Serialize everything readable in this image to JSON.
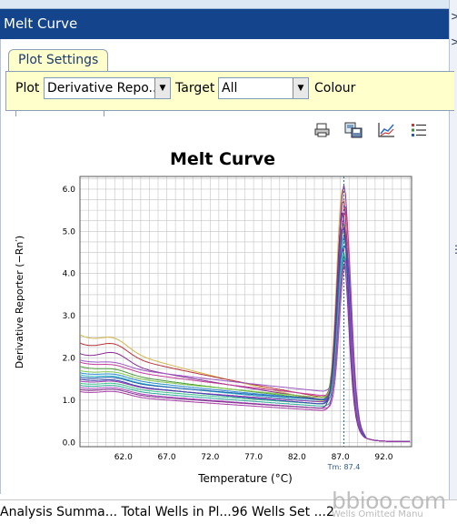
{
  "window": {
    "title": "Melt Curve"
  },
  "right_edge": {
    "glyphs": [
      ">",
      ">",
      "⋮"
    ]
  },
  "tabs": [
    {
      "label": "Plot Settings",
      "active": true
    }
  ],
  "plot_settings": {
    "plot_label": "Plot",
    "plot_value": "Derivative Repo...",
    "target_label": "Target",
    "target_value": "All",
    "colour_label": "Colour"
  },
  "toolbar": {
    "icons": [
      "print-icon",
      "save-image-icon",
      "line-chart-icon",
      "legend-list-icon"
    ]
  },
  "chart_data": {
    "type": "line",
    "title": "Melt Curve",
    "xlabel": "Temperature (°C)",
    "ylabel": "Derivative Reporter (−Rn′)",
    "xlim": [
      57.0,
      95.2
    ],
    "ylim": [
      -0.1,
      6.3
    ],
    "xticks": [
      "62.0",
      "67.0",
      "72.0",
      "77.0",
      "82.0",
      "87.0",
      "92.0"
    ],
    "yticks": [
      "0.0",
      "1.0",
      "2.0",
      "3.0",
      "4.0",
      "5.0",
      "6.0"
    ],
    "grid": true,
    "tm_label": "Tm: 87.4",
    "tm_value": 87.4,
    "series": [
      {
        "start": 2.55,
        "end": 0.95,
        "peak": 6.0,
        "color": "#d4b44a"
      },
      {
        "start": 2.35,
        "end": 1.05,
        "peak": 5.75,
        "color": "#b8323a"
      },
      {
        "start": 2.1,
        "end": 1.0,
        "peak": 6.1,
        "color": "#8a2a92"
      },
      {
        "start": 1.95,
        "end": 1.2,
        "peak": 5.65,
        "color": "#9a58c4"
      },
      {
        "start": 1.9,
        "end": 1.1,
        "peak": 5.5,
        "color": "#c43c9a"
      },
      {
        "start": 1.8,
        "end": 1.0,
        "peak": 5.2,
        "color": "#4a9a38"
      },
      {
        "start": 1.7,
        "end": 1.05,
        "peak": 5.0,
        "color": "#7ec84a"
      },
      {
        "start": 1.65,
        "end": 1.0,
        "peak": 4.9,
        "color": "#2a8ad4"
      },
      {
        "start": 1.6,
        "end": 0.95,
        "peak": 4.8,
        "color": "#2ab8c4"
      },
      {
        "start": 1.55,
        "end": 1.0,
        "peak": 4.7,
        "color": "#1a5ab4"
      },
      {
        "start": 1.5,
        "end": 0.9,
        "peak": 4.6,
        "color": "#6a3ab4"
      },
      {
        "start": 1.45,
        "end": 0.95,
        "peak": 5.3,
        "color": "#a03ab0"
      },
      {
        "start": 1.4,
        "end": 0.9,
        "peak": 4.5,
        "color": "#3ac48a"
      },
      {
        "start": 1.35,
        "end": 0.85,
        "peak": 4.4,
        "color": "#2aa89a"
      },
      {
        "start": 1.3,
        "end": 0.8,
        "peak": 4.3,
        "color": "#b04ac0"
      },
      {
        "start": 1.25,
        "end": 0.8,
        "peak": 5.45,
        "color": "#7a2a8a"
      },
      {
        "start": 1.5,
        "end": 0.9,
        "peak": 5.1,
        "color": "#3a4ab0"
      },
      {
        "start": 1.2,
        "end": 0.75,
        "peak": 4.2,
        "color": "#a838a4"
      }
    ]
  },
  "status_bar": {
    "text": "Analysis Summa...  Total Wells in Pl...96 Wells Set ...2"
  },
  "watermark": {
    "text": "bbioo.com",
    "subtext": "Wells Omitted Manu"
  }
}
